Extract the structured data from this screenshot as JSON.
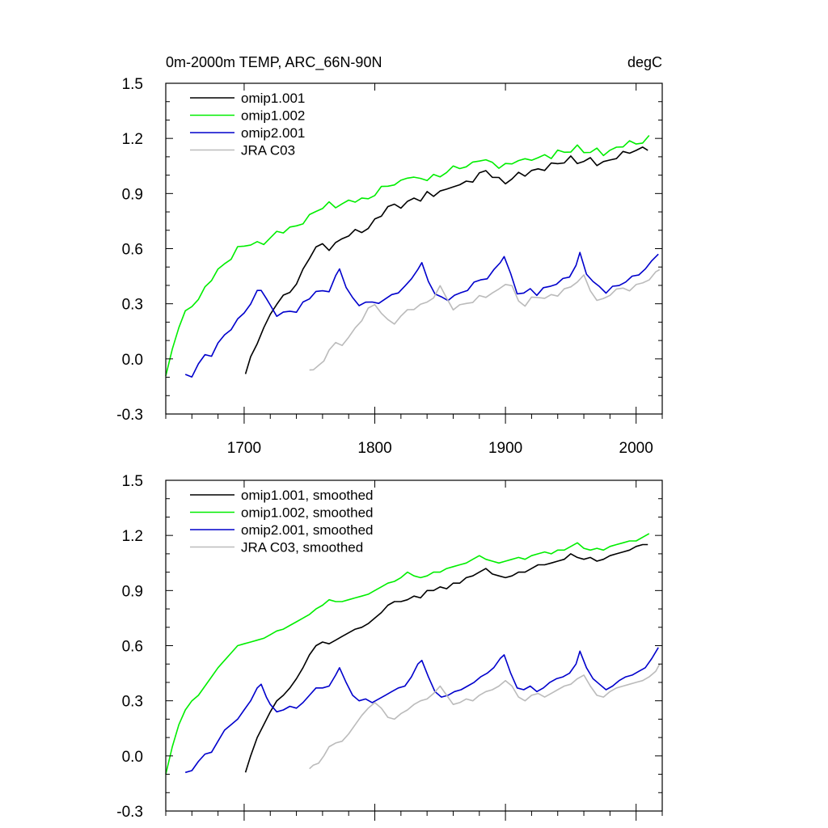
{
  "chart_data": [
    {
      "type": "line",
      "title": "0m-2000m TEMP, ARC_66N-90N",
      "units": "degC",
      "xlim": [
        1640,
        2020
      ],
      "ylim": [
        -0.3,
        1.5
      ],
      "xticks": [
        1700,
        1800,
        1900,
        2000
      ],
      "xtick_labels": [
        "1700",
        "1800",
        "1900",
        "2000"
      ],
      "yticks": [
        -0.3,
        0.0,
        0.3,
        0.6,
        0.9,
        1.2,
        1.5
      ],
      "ytick_labels": [
        "-0.3",
        "0.0",
        "0.3",
        "0.6",
        "0.9",
        "1.2",
        "1.5"
      ],
      "legend_position": "top-left",
      "series": [
        {
          "name": "omip1.001",
          "color": "#000000",
          "x": [
            1701,
            1705,
            1710,
            1715,
            1720,
            1725,
            1730,
            1735,
            1740,
            1745,
            1750,
            1755,
            1760,
            1765,
            1770,
            1775,
            1780,
            1785,
            1790,
            1795,
            1800,
            1805,
            1810,
            1815,
            1820,
            1825,
            1830,
            1835,
            1840,
            1845,
            1850,
            1855,
            1860,
            1865,
            1870,
            1875,
            1880,
            1885,
            1890,
            1895,
            1900,
            1905,
            1910,
            1915,
            1920,
            1925,
            1930,
            1935,
            1940,
            1945,
            1950,
            1955,
            1960,
            1965,
            1970,
            1975,
            1980,
            1985,
            1990,
            1995,
            2000,
            2005,
            2009
          ],
          "y": [
            -0.09,
            0.0,
            0.1,
            0.17,
            0.24,
            0.3,
            0.33,
            0.37,
            0.42,
            0.48,
            0.55,
            0.6,
            0.62,
            0.61,
            0.63,
            0.65,
            0.67,
            0.69,
            0.7,
            0.72,
            0.75,
            0.78,
            0.82,
            0.84,
            0.84,
            0.85,
            0.87,
            0.86,
            0.9,
            0.9,
            0.92,
            0.91,
            0.94,
            0.94,
            0.97,
            0.98,
            1.0,
            1.02,
            0.99,
            0.98,
            0.97,
            0.98,
            1.0,
            1.0,
            1.02,
            1.04,
            1.04,
            1.05,
            1.06,
            1.07,
            1.1,
            1.08,
            1.07,
            1.08,
            1.06,
            1.07,
            1.09,
            1.1,
            1.11,
            1.12,
            1.14,
            1.15,
            1.15
          ]
        },
        {
          "name": "omip1.002",
          "color": "#00ee00",
          "x": [
            1640,
            1645,
            1650,
            1655,
            1660,
            1665,
            1670,
            1675,
            1680,
            1685,
            1690,
            1695,
            1700,
            1705,
            1710,
            1715,
            1720,
            1725,
            1730,
            1735,
            1740,
            1745,
            1750,
            1755,
            1760,
            1765,
            1770,
            1775,
            1780,
            1785,
            1790,
            1795,
            1800,
            1805,
            1810,
            1815,
            1820,
            1825,
            1830,
            1835,
            1840,
            1845,
            1850,
            1855,
            1860,
            1865,
            1870,
            1875,
            1880,
            1885,
            1890,
            1895,
            1900,
            1905,
            1910,
            1915,
            1920,
            1925,
            1930,
            1935,
            1940,
            1945,
            1950,
            1955,
            1960,
            1965,
            1970,
            1975,
            1980,
            1985,
            1990,
            1995,
            2000,
            2005,
            2010
          ],
          "y": [
            -0.1,
            0.05,
            0.17,
            0.25,
            0.3,
            0.33,
            0.38,
            0.43,
            0.48,
            0.52,
            0.56,
            0.6,
            0.61,
            0.62,
            0.63,
            0.64,
            0.66,
            0.68,
            0.69,
            0.71,
            0.73,
            0.75,
            0.77,
            0.8,
            0.82,
            0.85,
            0.84,
            0.84,
            0.85,
            0.86,
            0.87,
            0.88,
            0.9,
            0.92,
            0.94,
            0.95,
            0.97,
            1.0,
            0.98,
            0.97,
            0.98,
            1.0,
            1.0,
            1.02,
            1.03,
            1.04,
            1.05,
            1.07,
            1.09,
            1.07,
            1.06,
            1.05,
            1.06,
            1.07,
            1.08,
            1.07,
            1.09,
            1.1,
            1.11,
            1.1,
            1.12,
            1.12,
            1.14,
            1.16,
            1.13,
            1.12,
            1.13,
            1.12,
            1.14,
            1.15,
            1.16,
            1.17,
            1.17,
            1.19,
            1.21
          ]
        },
        {
          "name": "omip2.001",
          "color": "#0000cc",
          "x": [
            1655,
            1660,
            1665,
            1670,
            1675,
            1680,
            1685,
            1690,
            1695,
            1700,
            1705,
            1710,
            1713,
            1717,
            1720,
            1725,
            1730,
            1735,
            1740,
            1745,
            1750,
            1755,
            1760,
            1765,
            1770,
            1773,
            1778,
            1783,
            1788,
            1793,
            1798,
            1803,
            1808,
            1813,
            1818,
            1823,
            1828,
            1833,
            1836,
            1841,
            1846,
            1851,
            1856,
            1861,
            1866,
            1871,
            1876,
            1881,
            1886,
            1891,
            1896,
            1899,
            1904,
            1909,
            1914,
            1919,
            1924,
            1929,
            1934,
            1939,
            1944,
            1949,
            1954,
            1957,
            1962,
            1967,
            1972,
            1977,
            1982,
            1987,
            1992,
            1997,
            2002,
            2007,
            2012,
            2017
          ],
          "y": [
            -0.09,
            -0.08,
            -0.03,
            0.01,
            0.02,
            0.08,
            0.14,
            0.17,
            0.2,
            0.25,
            0.3,
            0.37,
            0.39,
            0.32,
            0.28,
            0.24,
            0.25,
            0.27,
            0.26,
            0.29,
            0.33,
            0.37,
            0.37,
            0.38,
            0.44,
            0.48,
            0.4,
            0.33,
            0.3,
            0.31,
            0.29,
            0.31,
            0.33,
            0.35,
            0.37,
            0.38,
            0.43,
            0.5,
            0.52,
            0.43,
            0.35,
            0.32,
            0.33,
            0.35,
            0.36,
            0.38,
            0.4,
            0.43,
            0.45,
            0.48,
            0.53,
            0.55,
            0.45,
            0.37,
            0.36,
            0.38,
            0.35,
            0.37,
            0.4,
            0.42,
            0.43,
            0.45,
            0.5,
            0.57,
            0.48,
            0.42,
            0.39,
            0.36,
            0.38,
            0.41,
            0.43,
            0.44,
            0.46,
            0.48,
            0.53,
            0.59
          ]
        },
        {
          "name": "JRA C03",
          "color": "#bbbbbb",
          "x": [
            1750,
            1753,
            1757,
            1761,
            1765,
            1770,
            1775,
            1780,
            1785,
            1790,
            1795,
            1800,
            1805,
            1810,
            1815,
            1820,
            1825,
            1830,
            1835,
            1840,
            1845,
            1850,
            1855,
            1860,
            1865,
            1870,
            1875,
            1880,
            1885,
            1890,
            1895,
            1900,
            1905,
            1910,
            1915,
            1920,
            1925,
            1930,
            1935,
            1940,
            1945,
            1950,
            1955,
            1960,
            1965,
            1970,
            1975,
            1980,
            1985,
            1990,
            1995,
            2000,
            2005,
            2010,
            2015,
            2018
          ],
          "y": [
            -0.07,
            -0.05,
            -0.04,
            0.0,
            0.05,
            0.07,
            0.08,
            0.12,
            0.17,
            0.22,
            0.26,
            0.29,
            0.26,
            0.21,
            0.2,
            0.23,
            0.25,
            0.28,
            0.3,
            0.31,
            0.34,
            0.38,
            0.33,
            0.28,
            0.29,
            0.31,
            0.3,
            0.33,
            0.35,
            0.36,
            0.38,
            0.41,
            0.38,
            0.32,
            0.3,
            0.33,
            0.34,
            0.32,
            0.34,
            0.36,
            0.38,
            0.39,
            0.42,
            0.44,
            0.38,
            0.33,
            0.32,
            0.35,
            0.37,
            0.38,
            0.39,
            0.4,
            0.41,
            0.43,
            0.46,
            0.5
          ]
        }
      ]
    },
    {
      "type": "line",
      "xlim": [
        1640,
        2020
      ],
      "ylim": [
        -0.3,
        1.5
      ],
      "xticks": [
        1700,
        1800,
        1900,
        2000
      ],
      "yticks": [
        -0.3,
        0.0,
        0.3,
        0.6,
        0.9,
        1.2,
        1.5
      ],
      "ytick_labels": [
        "-0.3",
        "0.0",
        "0.3",
        "0.6",
        "0.9",
        "1.2",
        "1.5"
      ],
      "legend_position": "top-left",
      "series": [
        {
          "name": "omip1.001, smoothed",
          "color": "#000000",
          "ref": 0
        },
        {
          "name": "omip1.002, smoothed",
          "color": "#00ee00",
          "ref": 1
        },
        {
          "name": "omip2.001, smoothed",
          "color": "#0000cc",
          "ref": 2
        },
        {
          "name": "JRA C03, smoothed",
          "color": "#bbbbbb",
          "ref": 3
        }
      ]
    }
  ]
}
